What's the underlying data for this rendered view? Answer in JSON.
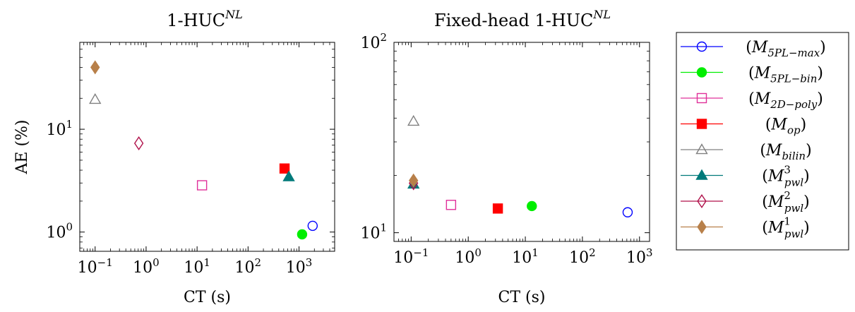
{
  "chart_data": [
    {
      "type": "scatter",
      "title": "1-HUC^NL",
      "title_base": "1-HUC",
      "title_sup": "NL",
      "xlabel": "CT (s)",
      "ylabel": "AE (%)",
      "xscale": "log",
      "yscale": "log",
      "xlim": [
        0.05,
        5000
      ],
      "ylim": [
        0.65,
        70
      ],
      "grid": false,
      "xticks": [
        {
          "value": 0.1,
          "base": "10",
          "exp": "−1"
        },
        {
          "value": 1,
          "base": "10",
          "exp": "0"
        },
        {
          "value": 10,
          "base": "10",
          "exp": "1"
        },
        {
          "value": 100,
          "base": "10",
          "exp": "2"
        },
        {
          "value": 1000,
          "base": "10",
          "exp": "3"
        }
      ],
      "yticks": [
        {
          "value": 1,
          "base": "10",
          "exp": "0"
        },
        {
          "value": 10,
          "base": "10",
          "exp": "1"
        }
      ],
      "points": [
        {
          "series": "M5PL-max",
          "x": 1850,
          "y": 1.15
        },
        {
          "series": "M5PL-bin",
          "x": 1150,
          "y": 0.95
        },
        {
          "series": "M2D-poly",
          "x": 12.5,
          "y": 2.85
        },
        {
          "series": "Mop",
          "x": 520,
          "y": 4.15
        },
        {
          "series": "Mbilin",
          "x": 0.1,
          "y": 19.5
        },
        {
          "series": "Mpwl3",
          "x": 630,
          "y": 3.45
        },
        {
          "series": "Mpwl2",
          "x": 0.72,
          "y": 7.3
        },
        {
          "series": "Mpwl1",
          "x": 0.1,
          "y": 40
        }
      ]
    },
    {
      "type": "scatter",
      "title": "Fixed-head 1-HUC^NL",
      "title_base": "Fixed-head 1-HUC",
      "title_sup": "NL",
      "xlabel": "CT (s)",
      "ylabel": "",
      "xscale": "log",
      "yscale": "log",
      "xlim": [
        0.05,
        1500
      ],
      "ylim": [
        9,
        100
      ],
      "grid": false,
      "xticks": [
        {
          "value": 0.1,
          "base": "10",
          "exp": "−1"
        },
        {
          "value": 1,
          "base": "10",
          "exp": "0"
        },
        {
          "value": 10,
          "base": "10",
          "exp": "1"
        },
        {
          "value": 100,
          "base": "10",
          "exp": "2"
        },
        {
          "value": 1000,
          "base": "10",
          "exp": "3"
        }
      ],
      "yticks": [
        {
          "value": 10,
          "base": "10",
          "exp": "1"
        },
        {
          "value": 100,
          "base": "10",
          "exp": "2"
        }
      ],
      "points": [
        {
          "series": "M5PL-max",
          "x": 620,
          "y": 12.8
        },
        {
          "series": "M5PL-bin",
          "x": 13,
          "y": 13.8
        },
        {
          "series": "M2D-poly",
          "x": 0.5,
          "y": 14
        },
        {
          "series": "Mop",
          "x": 3.3,
          "y": 13.4
        },
        {
          "series": "Mbilin",
          "x": 0.11,
          "y": 38.5
        },
        {
          "series": "Mpwl3",
          "x": 0.11,
          "y": 18
        },
        {
          "series": "Mpwl2",
          "x": 0.11,
          "y": 18.2
        },
        {
          "series": "Mpwl1",
          "x": 0.11,
          "y": 18.8
        }
      ]
    }
  ],
  "legend": {
    "placement": "right",
    "entries": [
      {
        "key": "M5PL-max",
        "base": "M",
        "sub": "5PL−max",
        "sup": "",
        "color": "#0000ff",
        "marker": "circle",
        "filled": false
      },
      {
        "key": "M5PL-bin",
        "base": "M",
        "sub": "5PL−bin",
        "sup": "",
        "color": "#00ee00",
        "marker": "circle",
        "filled": true
      },
      {
        "key": "M2D-poly",
        "base": "M",
        "sub": "2D−poly",
        "sup": "",
        "color": "#e0309a",
        "marker": "square",
        "filled": false
      },
      {
        "key": "Mop",
        "base": "M",
        "sub": "op",
        "sup": "",
        "color": "#ff0000",
        "marker": "square",
        "filled": true
      },
      {
        "key": "Mbilin",
        "base": "M",
        "sub": "bilin",
        "sup": "",
        "color": "#808080",
        "marker": "triangle",
        "filled": false
      },
      {
        "key": "Mpwl3",
        "base": "M",
        "sub": "pwl",
        "sup": "3",
        "color": "#007a7a",
        "marker": "triangle",
        "filled": true
      },
      {
        "key": "Mpwl2",
        "base": "M",
        "sub": "pwl",
        "sup": "2",
        "color": "#b0104a",
        "marker": "diamond",
        "filled": false
      },
      {
        "key": "Mpwl1",
        "base": "M",
        "sub": "pwl",
        "sup": "1",
        "color": "#b8804a",
        "marker": "diamond",
        "filled": true
      }
    ]
  }
}
